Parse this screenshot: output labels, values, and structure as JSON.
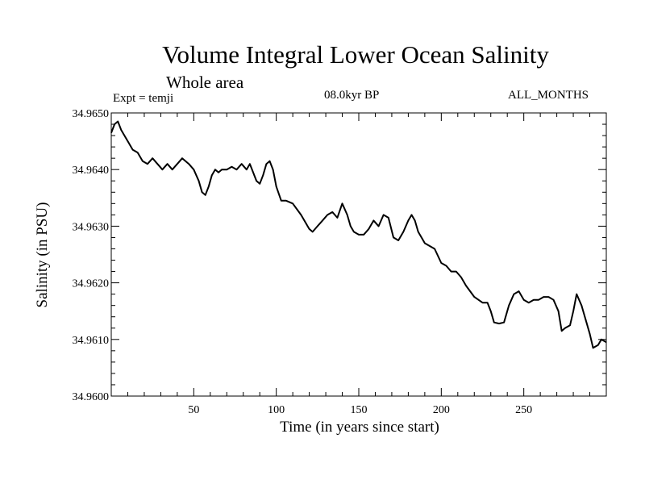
{
  "chart_data": {
    "type": "line",
    "title": "Volume Integral Lower Ocean Salinity",
    "subtitle": "Whole area",
    "left_label": "Expt = temji",
    "center_label": "08.0kyr BP",
    "right_label": "ALL_MONTHS",
    "xlabel": "Time (in years since start)",
    "ylabel": "Salinity (in PSU)",
    "xlim": [
      0,
      300
    ],
    "ylim": [
      34.96,
      34.965
    ],
    "xticks": [
      50,
      100,
      150,
      200,
      250
    ],
    "yticks": [
      34.96,
      34.961,
      34.962,
      34.963,
      34.964,
      34.965
    ],
    "ytick_labels": [
      "34.9600",
      "34.9610",
      "34.9620",
      "34.9630",
      "34.9640",
      "34.9650"
    ],
    "grid": false,
    "series": [
      {
        "name": "Salinity",
        "x": [
          0,
          2,
          4,
          6,
          8,
          10,
          13,
          16,
          19,
          22,
          25,
          28,
          31,
          34,
          37,
          40,
          43,
          45,
          47,
          50,
          53,
          55,
          57,
          59,
          61,
          63,
          65,
          67,
          70,
          73,
          76,
          79,
          82,
          84,
          86,
          88,
          90,
          92,
          94,
          96,
          98,
          100,
          103,
          106,
          110,
          115,
          120,
          122,
          125,
          128,
          131,
          134,
          137,
          140,
          143,
          145,
          147,
          150,
          153,
          156,
          159,
          162,
          165,
          168,
          171,
          174,
          177,
          180,
          182,
          184,
          186,
          188,
          190,
          193,
          196,
          200,
          203,
          206,
          209,
          212,
          215,
          220,
          225,
          228,
          230,
          232,
          235,
          238,
          241,
          244,
          247,
          250,
          253,
          256,
          259,
          262,
          265,
          268,
          271,
          273,
          275,
          278,
          280,
          282,
          285,
          288,
          290,
          292,
          295,
          297,
          300
        ],
        "y": [
          34.96465,
          34.9648,
          34.96485,
          34.9647,
          34.9646,
          34.9645,
          34.96435,
          34.9643,
          34.96415,
          34.9641,
          34.9642,
          34.9641,
          34.964,
          34.9641,
          34.964,
          34.9641,
          34.9642,
          34.96415,
          34.9641,
          34.964,
          34.9638,
          34.9636,
          34.96355,
          34.9637,
          34.9639,
          34.964,
          34.96395,
          34.964,
          34.964,
          34.96405,
          34.964,
          34.9641,
          34.964,
          34.9641,
          34.96395,
          34.9638,
          34.96375,
          34.9639,
          34.9641,
          34.96415,
          34.964,
          34.9637,
          34.96345,
          34.96345,
          34.9634,
          34.9632,
          34.96295,
          34.9629,
          34.963,
          34.9631,
          34.9632,
          34.96325,
          34.96315,
          34.9634,
          34.9632,
          34.963,
          34.9629,
          34.96285,
          34.96285,
          34.96295,
          34.9631,
          34.963,
          34.9632,
          34.96315,
          34.9628,
          34.96275,
          34.9629,
          34.9631,
          34.9632,
          34.9631,
          34.9629,
          34.9628,
          34.9627,
          34.96265,
          34.9626,
          34.96235,
          34.9623,
          34.9622,
          34.9622,
          34.9621,
          34.96195,
          34.96175,
          34.96165,
          34.96165,
          34.9615,
          34.9613,
          34.96128,
          34.9613,
          34.9616,
          34.9618,
          34.96185,
          34.9617,
          34.96165,
          34.9617,
          34.9617,
          34.96175,
          34.96175,
          34.9617,
          34.9615,
          34.96115,
          34.9612,
          34.96125,
          34.9615,
          34.9618,
          34.9616,
          34.9613,
          34.9611,
          34.96085,
          34.9609,
          34.961,
          34.96095
        ]
      }
    ]
  }
}
